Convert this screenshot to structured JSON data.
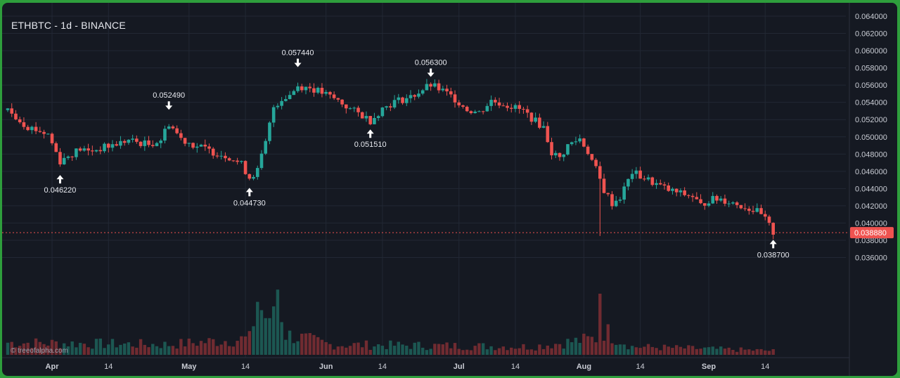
{
  "chart_data": {
    "type": "candlestick",
    "title": "ETHBTC - 1d - BINANCE",
    "watermark": "© treeofalpha.com",
    "x_tick_labels": [
      "Apr",
      "14",
      "May",
      "14",
      "Jun",
      "14",
      "Jul",
      "14",
      "Aug",
      "14",
      "Sep",
      "14"
    ],
    "y_tick_labels": [
      "0.064000",
      "0.062000",
      "0.060000",
      "0.058000",
      "0.056000",
      "0.054000",
      "0.052000",
      "0.050000",
      "0.048000",
      "0.046000",
      "0.044000",
      "0.042000",
      "0.040000",
      "0.038000",
      "0.036000"
    ],
    "ylim": [
      0.0342,
      0.0646
    ],
    "last_price": "0.038880",
    "colors": {
      "up": "#26a69a",
      "down": "#ef5350",
      "background": "#151922",
      "grid": "#222834",
      "text": "#c9ccd4"
    },
    "annotations": [
      {
        "label": "0.046220",
        "day": 13,
        "price": 0.04622,
        "type": "low"
      },
      {
        "label": "0.052490",
        "day": 40,
        "price": 0.05249,
        "type": "high"
      },
      {
        "label": "0.044730",
        "day": 60,
        "price": 0.04473,
        "type": "low"
      },
      {
        "label": "0.057440",
        "day": 72,
        "price": 0.05744,
        "type": "high"
      },
      {
        "label": "0.051510",
        "day": 90,
        "price": 0.05151,
        "type": "low"
      },
      {
        "label": "0.056300",
        "day": 105,
        "price": 0.0563,
        "type": "high"
      },
      {
        "label": "0.038700",
        "day": 190,
        "price": 0.0387,
        "type": "low"
      }
    ],
    "close_keypoints": [
      [
        0,
        0.0531
      ],
      [
        5,
        0.0512
      ],
      [
        10,
        0.0503
      ],
      [
        13,
        0.0472
      ],
      [
        15,
        0.0478
      ],
      [
        18,
        0.0486
      ],
      [
        20,
        0.0483
      ],
      [
        25,
        0.0489
      ],
      [
        30,
        0.0496
      ],
      [
        35,
        0.0491
      ],
      [
        38,
        0.0497
      ],
      [
        40,
        0.0516
      ],
      [
        43,
        0.0498
      ],
      [
        46,
        0.0491
      ],
      [
        50,
        0.0484
      ],
      [
        55,
        0.0477
      ],
      [
        58,
        0.0468
      ],
      [
        60,
        0.0453
      ],
      [
        62,
        0.0461
      ],
      [
        64,
        0.0493
      ],
      [
        66,
        0.0535
      ],
      [
        68,
        0.0544
      ],
      [
        70,
        0.0549
      ],
      [
        72,
        0.0559
      ],
      [
        75,
        0.0557
      ],
      [
        78,
        0.0551
      ],
      [
        82,
        0.0542
      ],
      [
        85,
        0.0532
      ],
      [
        88,
        0.0525
      ],
      [
        90,
        0.0519
      ],
      [
        93,
        0.0533
      ],
      [
        96,
        0.0541
      ],
      [
        100,
        0.0546
      ],
      [
        103,
        0.0555
      ],
      [
        105,
        0.056
      ],
      [
        108,
        0.0553
      ],
      [
        111,
        0.0544
      ],
      [
        114,
        0.0532
      ],
      [
        117,
        0.0528
      ],
      [
        120,
        0.0542
      ],
      [
        124,
        0.0537
      ],
      [
        128,
        0.053
      ],
      [
        131,
        0.0518
      ],
      [
        133,
        0.0511
      ],
      [
        135,
        0.0482
      ],
      [
        137,
        0.0475
      ],
      [
        139,
        0.049
      ],
      [
        142,
        0.0498
      ],
      [
        144,
        0.0483
      ],
      [
        146,
        0.0462
      ],
      [
        148,
        0.0438
      ],
      [
        150,
        0.0423
      ],
      [
        152,
        0.043
      ],
      [
        155,
        0.0459
      ],
      [
        158,
        0.0452
      ],
      [
        161,
        0.0445
      ],
      [
        164,
        0.0438
      ],
      [
        167,
        0.0434
      ],
      [
        170,
        0.0431
      ],
      [
        172,
        0.042
      ],
      [
        174,
        0.0427
      ],
      [
        177,
        0.0428
      ],
      [
        179,
        0.0425
      ],
      [
        181,
        0.0422
      ],
      [
        184,
        0.0417
      ],
      [
        186,
        0.0413
      ],
      [
        188,
        0.0404
      ],
      [
        190,
        0.0389
      ]
    ],
    "volume_keypoints": [
      [
        0,
        0.3
      ],
      [
        40,
        0.25
      ],
      [
        60,
        0.4
      ],
      [
        62,
        1.3
      ],
      [
        64,
        0.9
      ],
      [
        65,
        0.9
      ],
      [
        67,
        1.6
      ],
      [
        69,
        0.5
      ],
      [
        80,
        0.25
      ],
      [
        130,
        0.2
      ],
      [
        146,
        0.4
      ],
      [
        147,
        1.5
      ],
      [
        148,
        0.6
      ],
      [
        155,
        0.2
      ],
      [
        190,
        0.1
      ]
    ]
  }
}
